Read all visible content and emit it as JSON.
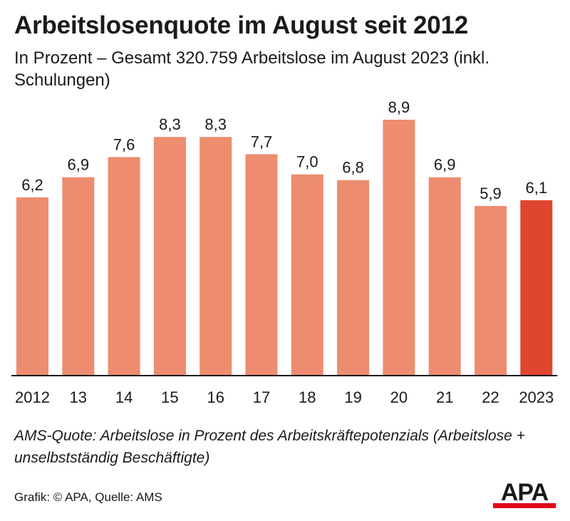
{
  "header": {
    "title": "Arbeitslosenquote im August seit 2012",
    "subtitle": "In Prozent – Gesamt 320.759 Arbeitslose im August 2023 (inkl. Schulungen)"
  },
  "chart_data": {
    "type": "bar",
    "title": "Arbeitslosenquote im August seit 2012",
    "categories": [
      "2012",
      "13",
      "14",
      "15",
      "16",
      "17",
      "18",
      "19",
      "20",
      "21",
      "22",
      "2023"
    ],
    "values": [
      6.2,
      6.9,
      7.6,
      8.3,
      8.3,
      7.7,
      7.0,
      6.8,
      8.9,
      6.9,
      5.9,
      6.1
    ],
    "value_labels": [
      "6,2",
      "6,9",
      "7,6",
      "8,3",
      "8,3",
      "7,7",
      "7,0",
      "6,8",
      "8,9",
      "6,9",
      "5,9",
      "6,1"
    ],
    "ylim": [
      0,
      8.9
    ],
    "grid": false,
    "colors": {
      "bar": "#ed8c6f",
      "highlight": "#e0462f",
      "axis": "#1a1a1a"
    },
    "highlight_index": 11
  },
  "footer": {
    "note": "AMS-Quote: Arbeitslose in Prozent des Arbeitskräftepotenzials (Arbeitslose + unselbstständig Beschäftigte)",
    "credit": "Grafik: © APA, Quelle: AMS",
    "logo_text": "APA",
    "logo_colors": {
      "text": "#1a1a1a",
      "stripe": "#e2001a"
    }
  }
}
